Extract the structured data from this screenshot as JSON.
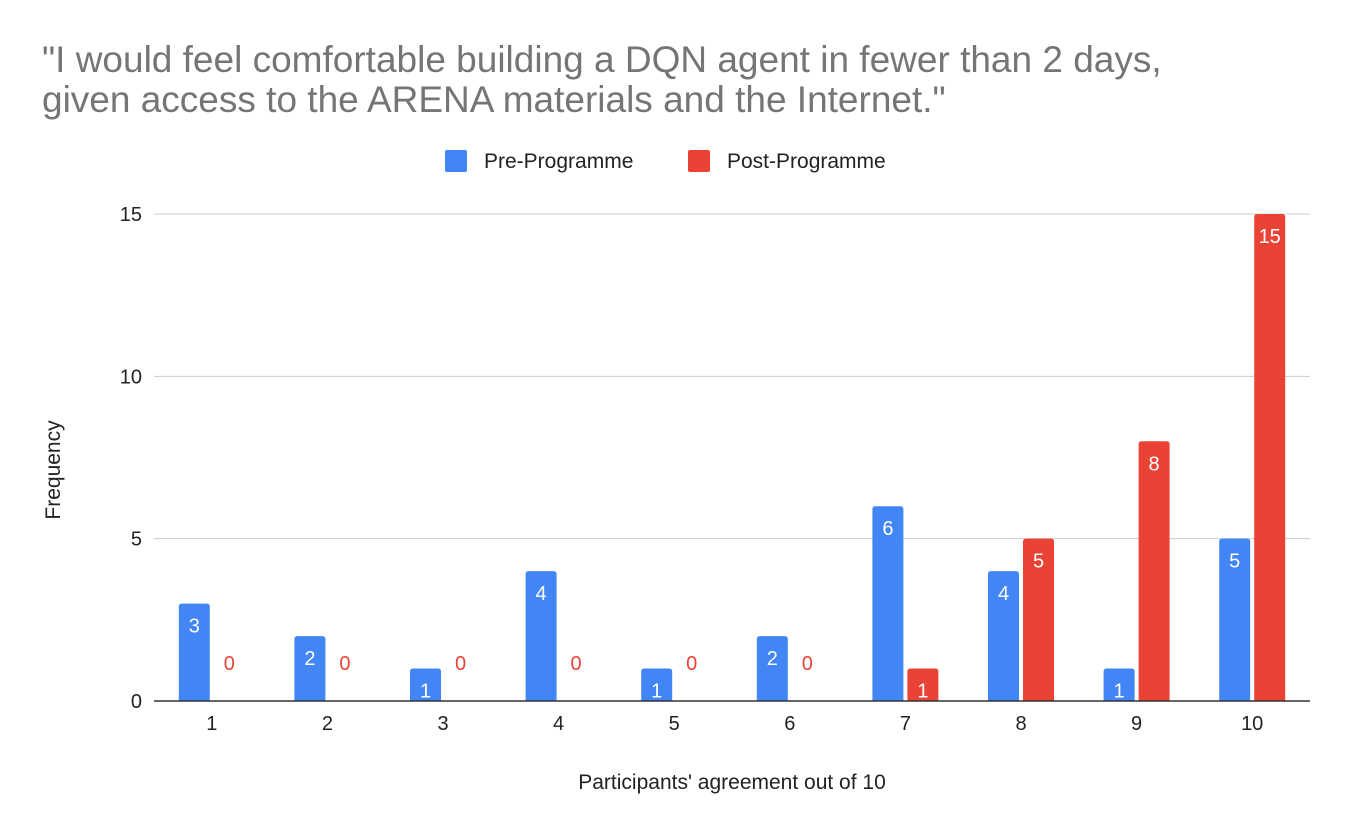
{
  "chart_data": {
    "type": "bar",
    "title_lines": [
      "\"I would feel comfortable building a DQN agent in fewer than 2 days,",
      "given access to the ARENA materials and the Internet.\""
    ],
    "xlabel": "Participants' agreement out of 10",
    "ylabel": "Frequency",
    "categories": [
      "1",
      "2",
      "3",
      "4",
      "5",
      "6",
      "7",
      "8",
      "9",
      "10"
    ],
    "series": [
      {
        "name": "Pre-Programme",
        "color": "#4285f4",
        "values": [
          3,
          2,
          1,
          4,
          1,
          2,
          6,
          4,
          1,
          5
        ]
      },
      {
        "name": "Post-Programme",
        "color": "#ea4335",
        "values": [
          0,
          0,
          0,
          0,
          0,
          0,
          1,
          5,
          8,
          15
        ]
      }
    ],
    "ylim": [
      0,
      15
    ],
    "yticks": [
      0,
      5,
      10,
      15
    ],
    "grid": true,
    "legend": "top-center",
    "data_labels": true
  }
}
